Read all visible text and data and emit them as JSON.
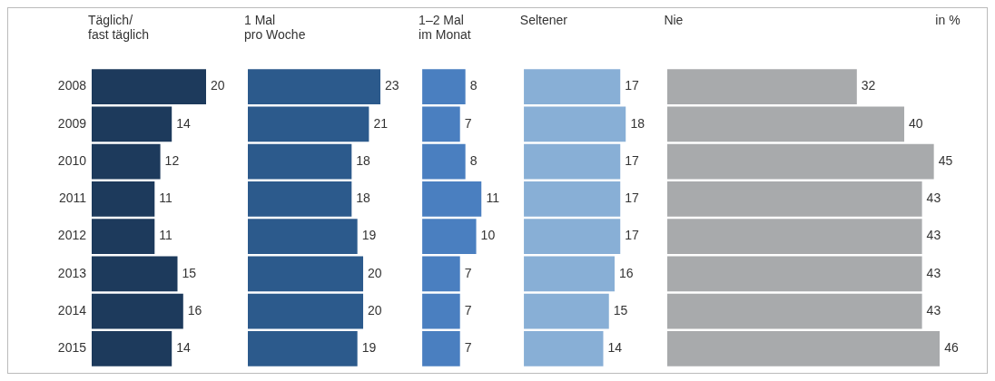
{
  "chart_data": [
    {
      "type": "bar",
      "orientation": "horizontal",
      "title": "Täglich/\nfast täglich",
      "categories": [
        "2008",
        "2009",
        "2010",
        "2011",
        "2012",
        "2013",
        "2014",
        "2015"
      ],
      "values": [
        20,
        14,
        12,
        11,
        11,
        15,
        16,
        14
      ],
      "color": "#1d3a5c",
      "data_labels": true,
      "tick_labels": "y"
    },
    {
      "type": "bar",
      "orientation": "horizontal",
      "title": "1 Mal\npro Woche",
      "categories": [
        "2008",
        "2009",
        "2010",
        "2011",
        "2012",
        "2013",
        "2014",
        "2015"
      ],
      "values": [
        23,
        21,
        18,
        18,
        19,
        20,
        20,
        19
      ],
      "color": "#2c5a8c",
      "data_labels": true,
      "tick_labels": false
    },
    {
      "type": "bar",
      "orientation": "horizontal",
      "title": "1–2 Mal\nim Monat",
      "categories": [
        "2008",
        "2009",
        "2010",
        "2011",
        "2012",
        "2013",
        "2014",
        "2015"
      ],
      "values": [
        8,
        7,
        8,
        11,
        10,
        7,
        7,
        7
      ],
      "color": "#4a7fc0",
      "data_labels": true,
      "tick_labels": false
    },
    {
      "type": "bar",
      "orientation": "horizontal",
      "title": "Seltener",
      "categories": [
        "2008",
        "2009",
        "2010",
        "2011",
        "2012",
        "2013",
        "2014",
        "2015"
      ],
      "values": [
        17,
        18,
        17,
        17,
        17,
        16,
        15,
        14
      ],
      "color": "#88afd6",
      "data_labels": true,
      "tick_labels": false
    },
    {
      "type": "bar",
      "orientation": "horizontal",
      "title": "Nie",
      "annotations": [
        "in %"
      ],
      "categories": [
        "2008",
        "2009",
        "2010",
        "2011",
        "2012",
        "2013",
        "2014",
        "2015"
      ],
      "values": [
        32,
        40,
        45,
        43,
        43,
        43,
        43,
        46
      ],
      "color": "#a8aaac",
      "data_labels": true,
      "tick_labels": false
    }
  ]
}
